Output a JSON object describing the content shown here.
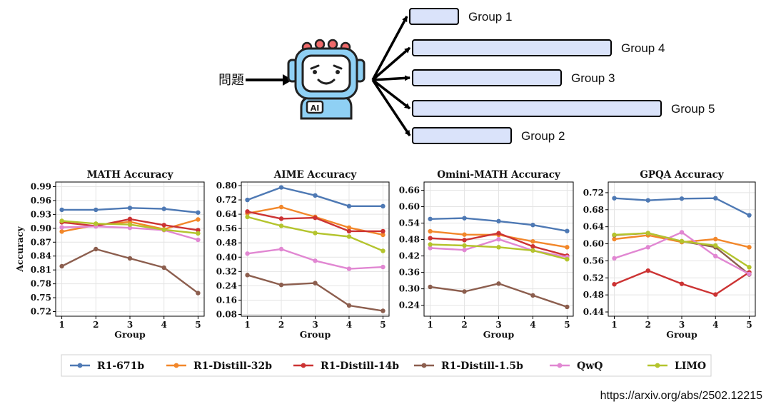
{
  "diagram": {
    "question_label": "問題",
    "robot_badge": "AI",
    "groups": [
      {
        "label": "Group 1",
        "length": 1
      },
      {
        "label": "Group 4",
        "length": 4
      },
      {
        "label": "Group 3",
        "length": 3
      },
      {
        "label": "Group 5",
        "length": 5
      },
      {
        "label": "Group 2",
        "length": 2
      }
    ],
    "bar_fill": "#dae3fa",
    "bar_stroke": "#000000"
  },
  "source_url": "https://arxiv.org/abs/2502.12215",
  "legend": [
    {
      "name": "R1-671b",
      "color": "#4e79b4"
    },
    {
      "name": "R1-Distill-32b",
      "color": "#f2872a"
    },
    {
      "name": "R1-Distill-14b",
      "color": "#cc3333"
    },
    {
      "name": "R1-Distill-1.5b",
      "color": "#8c5e4e"
    },
    {
      "name": "QwQ",
      "color": "#e187d2"
    },
    {
      "name": "LIMO",
      "color": "#b4c42d"
    }
  ],
  "chart_data": [
    {
      "type": "line",
      "title": "MATH Accuracy",
      "xlabel": "Group",
      "ylabel": "Accuracy",
      "x": [
        1,
        2,
        3,
        4,
        5
      ],
      "ylim": [
        0.71,
        1.0
      ],
      "yticks": [
        0.72,
        0.75,
        0.78,
        0.81,
        0.84,
        0.87,
        0.9,
        0.93,
        0.96,
        0.99
      ],
      "tick_decimals": 2,
      "series": [
        {
          "name": "R1-671b",
          "values": [
            0.94,
            0.94,
            0.944,
            0.942,
            0.934
          ]
        },
        {
          "name": "R1-Distill-32b",
          "values": [
            0.893,
            0.907,
            0.914,
            0.898,
            0.919
          ]
        },
        {
          "name": "R1-Distill-14b",
          "values": [
            0.913,
            0.905,
            0.92,
            0.907,
            0.896
          ]
        },
        {
          "name": "R1-Distill-1.5b",
          "values": [
            0.818,
            0.855,
            0.835,
            0.815,
            0.76
          ]
        },
        {
          "name": "QwQ",
          "values": [
            0.902,
            0.904,
            0.901,
            0.896,
            0.875
          ]
        },
        {
          "name": "LIMO",
          "values": [
            0.916,
            0.91,
            0.908,
            0.897,
            0.889
          ]
        }
      ]
    },
    {
      "type": "line",
      "title": "AIME Accuracy",
      "xlabel": "Group",
      "ylabel": "",
      "x": [
        1,
        2,
        3,
        4,
        5
      ],
      "ylim": [
        0.07,
        0.82
      ],
      "yticks": [
        0.08,
        0.16,
        0.24,
        0.32,
        0.4,
        0.48,
        0.56,
        0.64,
        0.72,
        0.8
      ],
      "tick_decimals": 2,
      "series": [
        {
          "name": "R1-671b",
          "values": [
            0.72,
            0.79,
            0.745,
            0.685,
            0.685
          ]
        },
        {
          "name": "R1-Distill-32b",
          "values": [
            0.645,
            0.68,
            0.625,
            0.565,
            0.525
          ]
        },
        {
          "name": "R1-Distill-14b",
          "values": [
            0.655,
            0.615,
            0.62,
            0.545,
            0.545
          ]
        },
        {
          "name": "R1-Distill-1.5b",
          "values": [
            0.3,
            0.245,
            0.255,
            0.13,
            0.1
          ]
        },
        {
          "name": "QwQ",
          "values": [
            0.42,
            0.445,
            0.38,
            0.335,
            0.345
          ]
        },
        {
          "name": "LIMO",
          "values": [
            0.625,
            0.575,
            0.535,
            0.515,
            0.435
          ]
        }
      ]
    },
    {
      "type": "line",
      "title": "Omini-MATH Accuracy",
      "xlabel": "Group",
      "ylabel": "",
      "x": [
        1,
        2,
        3,
        4,
        5
      ],
      "ylim": [
        0.2,
        0.69
      ],
      "yticks": [
        0.24,
        0.3,
        0.36,
        0.42,
        0.48,
        0.54,
        0.6,
        0.66
      ],
      "tick_decimals": 2,
      "series": [
        {
          "name": "R1-671b",
          "values": [
            0.555,
            0.558,
            0.547,
            0.533,
            0.511
          ]
        },
        {
          "name": "R1-Distill-32b",
          "values": [
            0.51,
            0.498,
            0.497,
            0.473,
            0.452
          ]
        },
        {
          "name": "R1-Distill-14b",
          "values": [
            0.485,
            0.478,
            0.503,
            0.455,
            0.421
          ]
        },
        {
          "name": "R1-Distill-1.5b",
          "values": [
            0.307,
            0.29,
            0.319,
            0.276,
            0.234
          ]
        },
        {
          "name": "QwQ",
          "values": [
            0.449,
            0.442,
            0.481,
            0.44,
            0.416
          ]
        },
        {
          "name": "LIMO",
          "values": [
            0.462,
            0.458,
            0.452,
            0.44,
            0.408
          ]
        }
      ]
    },
    {
      "type": "line",
      "title": "GPQA Accuracy",
      "xlabel": "Group",
      "ylabel": "",
      "x": [
        1,
        2,
        3,
        4,
        5
      ],
      "ylim": [
        0.43,
        0.745
      ],
      "yticks": [
        0.44,
        0.48,
        0.52,
        0.56,
        0.6,
        0.64,
        0.68,
        0.72
      ],
      "tick_decimals": 2,
      "series": [
        {
          "name": "R1-671b",
          "values": [
            0.707,
            0.702,
            0.706,
            0.707,
            0.667
          ]
        },
        {
          "name": "R1-Distill-32b",
          "values": [
            0.611,
            0.62,
            0.604,
            0.611,
            0.592
          ]
        },
        {
          "name": "R1-Distill-14b",
          "values": [
            0.505,
            0.537,
            0.506,
            0.481,
            0.533
          ]
        },
        {
          "name": "R1-Distill-1.5b",
          "values": [
            0.62,
            0.625,
            0.606,
            0.592,
            0.528
          ]
        },
        {
          "name": "QwQ",
          "values": [
            0.566,
            0.592,
            0.627,
            0.571,
            0.529
          ]
        },
        {
          "name": "LIMO",
          "values": [
            0.621,
            0.625,
            0.606,
            0.596,
            0.545
          ]
        }
      ]
    }
  ]
}
